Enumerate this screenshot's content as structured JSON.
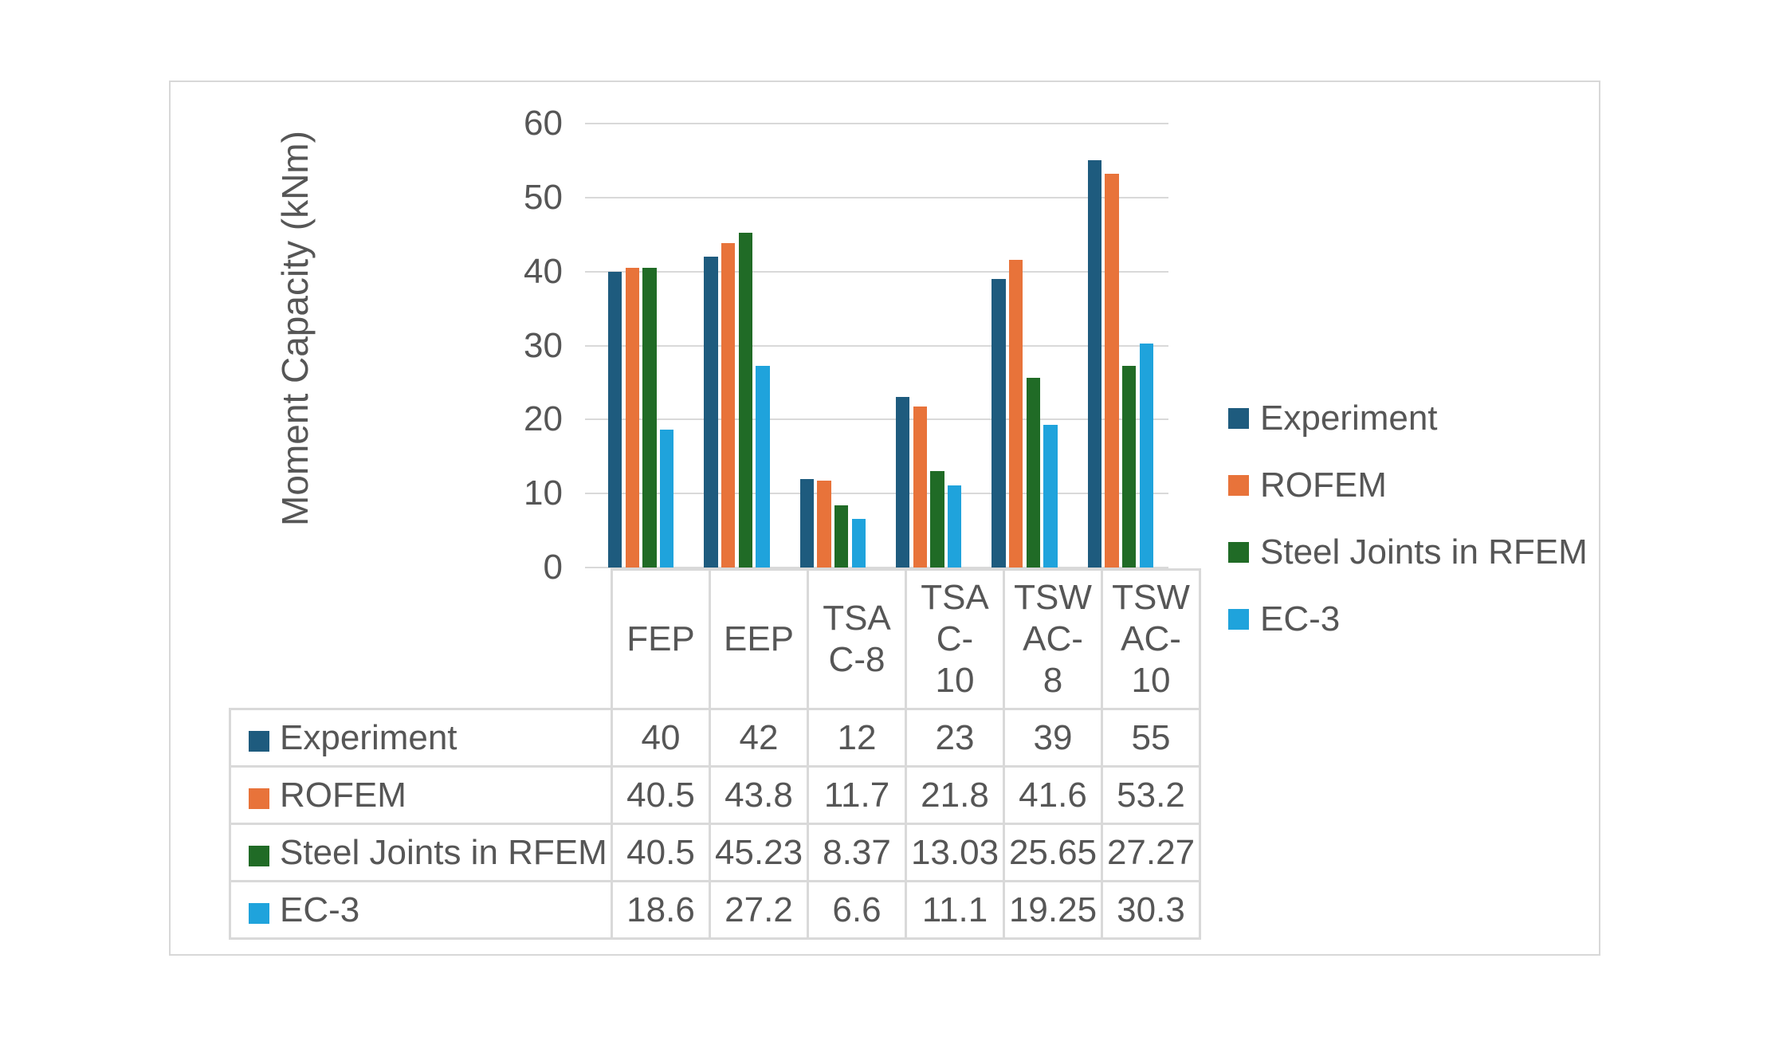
{
  "chart_data": {
    "type": "bar",
    "title": "",
    "ylabel": "Moment Capacity (kNm)",
    "xlabel": "",
    "ylim": [
      0,
      60
    ],
    "yticks": [
      0,
      10,
      20,
      30,
      40,
      50,
      60
    ],
    "grid": true,
    "legend_position": "right",
    "data_table_shown": true,
    "categories": [
      "FEP",
      "EEP",
      "TSA C-8",
      "TSA C-10",
      "TSW AC-8",
      "TSW AC-10"
    ],
    "category_display": [
      "FEP",
      "EEP",
      "TSA\nC-8",
      "TSA\nC-\n10",
      "TSW\nAC-\n8",
      "TSW\nAC-\n10"
    ],
    "series": [
      {
        "name": "Experiment",
        "color": "#1e5b7e",
        "values": [
          40,
          42,
          12,
          23,
          39,
          55
        ]
      },
      {
        "name": "ROFEM",
        "color": "#e8733a",
        "values": [
          40.5,
          43.8,
          11.7,
          21.8,
          41.6,
          53.2
        ]
      },
      {
        "name": "Steel Joints in RFEM",
        "color": "#206b26",
        "values": [
          40.5,
          45.23,
          8.37,
          13.03,
          25.65,
          27.27
        ]
      },
      {
        "name": "EC-3",
        "color": "#1fa3dc",
        "values": [
          18.6,
          27.2,
          6.6,
          11.1,
          19.25,
          30.3
        ]
      }
    ],
    "colors": {
      "gridline": "#d9d9d9",
      "table_border": "#d9d9d9",
      "text": "#565656",
      "frame_border": "#d8d8d8"
    }
  }
}
